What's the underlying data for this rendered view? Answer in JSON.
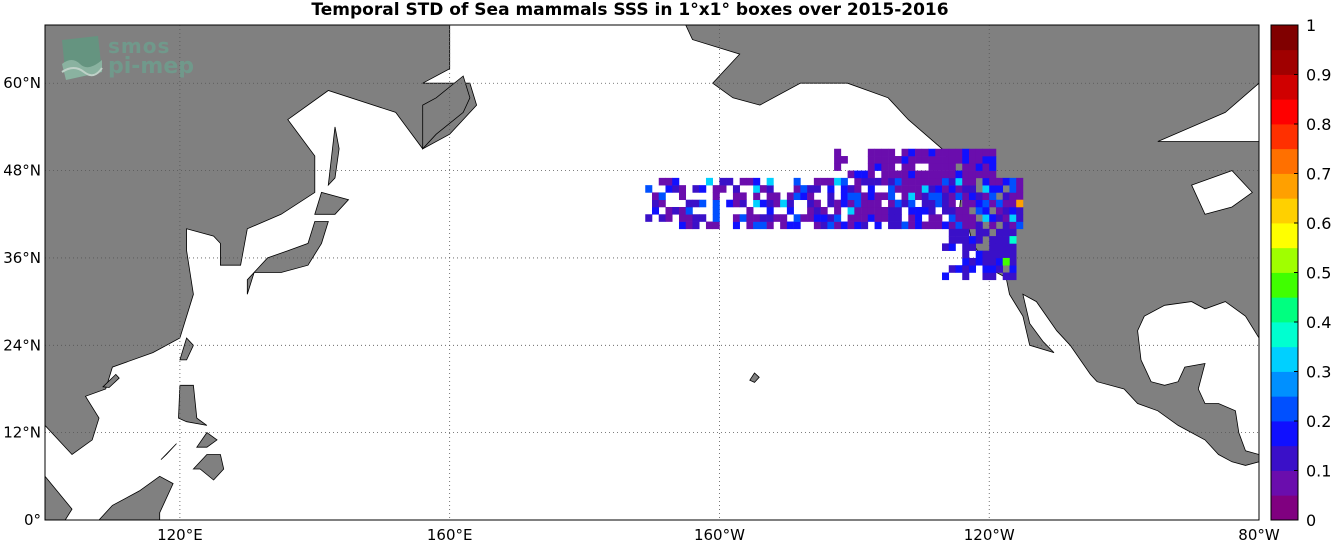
{
  "title": "Temporal STD of Sea mammals SSS in 1°x1° boxes over 2015-2016",
  "logo": {
    "line1": "smos",
    "line2": "pi-mep"
  },
  "map": {
    "lon_min": 100,
    "lon_max": 280,
    "lat_min": 0,
    "lat_max": 68,
    "land_color": "#808080",
    "ocean_color": "#ffffff",
    "lat_ticks": [
      {
        "value": 0,
        "label": "0°"
      },
      {
        "value": 12,
        "label": "12°N"
      },
      {
        "value": 24,
        "label": "24°N"
      },
      {
        "value": 36,
        "label": "36°N"
      },
      {
        "value": 48,
        "label": "48°N"
      },
      {
        "value": 60,
        "label": "60°N"
      }
    ],
    "lon_ticks": [
      {
        "value": 120,
        "label": "120°E"
      },
      {
        "value": 160,
        "label": "160°E"
      },
      {
        "value": 200,
        "label": "160°W"
      },
      {
        "value": 240,
        "label": "120°W"
      },
      {
        "value": 280,
        "label": "80°W"
      }
    ]
  },
  "colorbar": {
    "min": 0,
    "max": 1,
    "ticks": [
      "0",
      "0.1",
      "0.2",
      "0.3",
      "0.4",
      "0.5",
      "0.6",
      "0.7",
      "0.8",
      "0.9",
      "1"
    ],
    "colors": [
      "#800080",
      "#6a0dad",
      "#3a10c8",
      "#1010ff",
      "#0050ff",
      "#0090ff",
      "#00d0ff",
      "#00ffd0",
      "#00ff80",
      "#40ff00",
      "#a0ff00",
      "#ffff00",
      "#ffd000",
      "#ffa000",
      "#ff7000",
      "#ff3000",
      "#ff0000",
      "#d00000",
      "#a00000",
      "#800000"
    ]
  },
  "chart_data": {
    "type": "heatmap",
    "title": "Temporal STD of Sea mammals SSS in 1°x1° boxes over 2015-2016",
    "value_range": [
      0,
      1
    ],
    "clusters": [
      {
        "lon_range": [
          189,
          245
        ],
        "lat_range": [
          40,
          47
        ],
        "dominant_std": 0.05,
        "note_values": [
          0.05,
          0.1,
          0.15,
          0.2,
          0.3
        ]
      },
      {
        "lon_range": [
          217,
          241
        ],
        "lat_range": [
          47,
          51
        ],
        "dominant_std": 0.05
      },
      {
        "lon_range": [
          233,
          244
        ],
        "lat_range": [
          33,
          40
        ],
        "dominant_std": 0.1
      },
      {
        "lon": 244,
        "lat": 43,
        "std": 0.65
      },
      {
        "lon": 243,
        "lat": 38,
        "std": 0.35
      },
      {
        "lon": 242,
        "lat": 35,
        "std": 0.45
      }
    ]
  }
}
